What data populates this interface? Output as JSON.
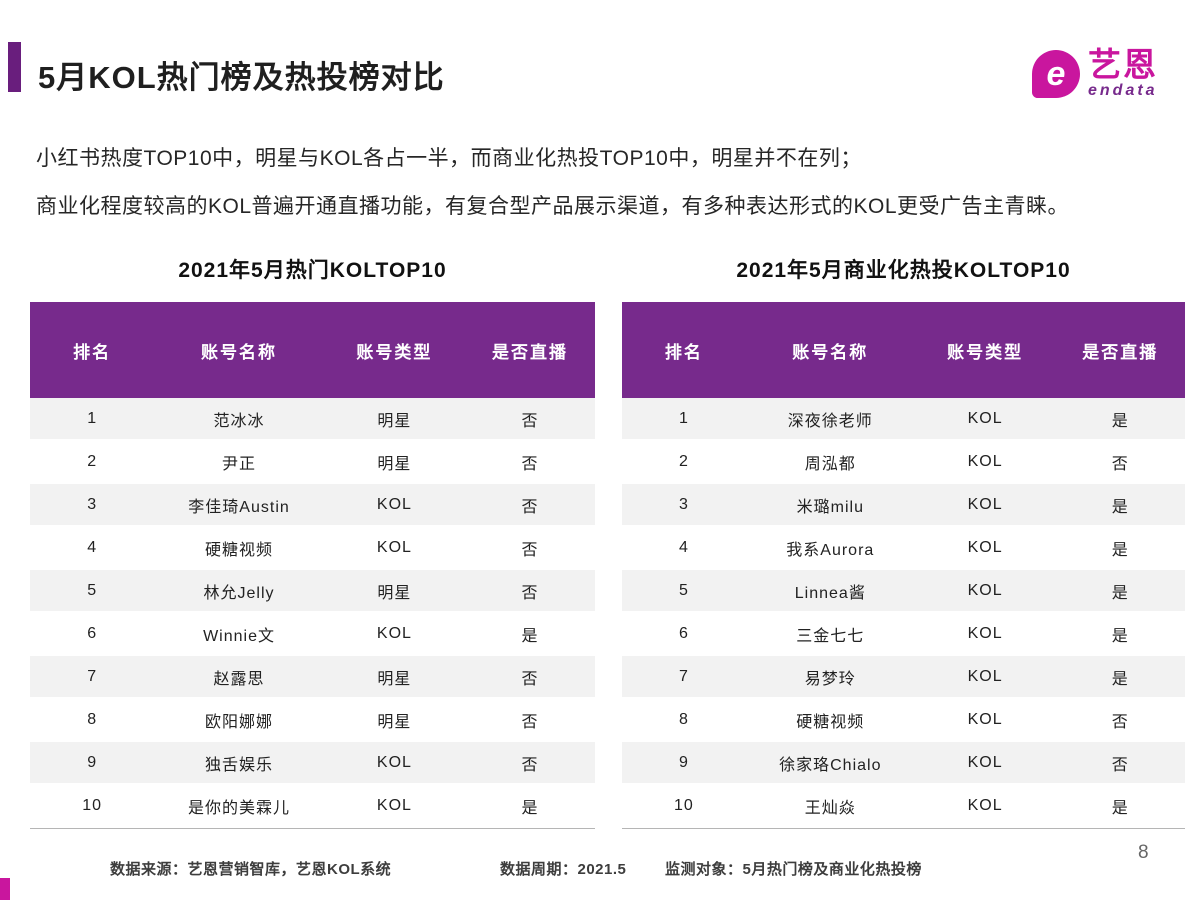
{
  "header": {
    "title": "5月KOL热门榜及热投榜对比"
  },
  "logo": {
    "glyph": "e",
    "brand": "艺恩",
    "sub": "endata"
  },
  "subtitle": {
    "line1": "小红书热度TOP10中，明星与KOL各占一半，而商业化热投TOP10中，明星并不在列；",
    "line2": "商业化程度较高的KOL普遍开通直播功能，有复合型产品展示渠道，有多种表达形式的KOL更受广告主青睐。"
  },
  "tables": [
    {
      "title": "2021年5月热门KOLTOP10",
      "headers": [
        "排名",
        "账号名称",
        "账号类型",
        "是否直播"
      ],
      "rows": [
        {
          "rank": "1",
          "name": "范冰冰",
          "type": "明星",
          "live": "否"
        },
        {
          "rank": "2",
          "name": "尹正",
          "type": "明星",
          "live": "否"
        },
        {
          "rank": "3",
          "name": "李佳琦Austin",
          "type": "KOL",
          "live": "否"
        },
        {
          "rank": "4",
          "name": "硬糖视频",
          "type": "KOL",
          "live": "否"
        },
        {
          "rank": "5",
          "name": "林允Jelly",
          "type": "明星",
          "live": "否"
        },
        {
          "rank": "6",
          "name": "Winnie文",
          "type": "KOL",
          "live": "是"
        },
        {
          "rank": "7",
          "name": "赵露思",
          "type": "明星",
          "live": "否"
        },
        {
          "rank": "8",
          "name": "欧阳娜娜",
          "type": "明星",
          "live": "否"
        },
        {
          "rank": "9",
          "name": "独舌娱乐",
          "type": "KOL",
          "live": "否"
        },
        {
          "rank": "10",
          "name": "是你的美霖儿",
          "type": "KOL",
          "live": "是"
        }
      ]
    },
    {
      "title": "2021年5月商业化热投KOLTOP10",
      "headers": [
        "排名",
        "账号名称",
        "账号类型",
        "是否直播"
      ],
      "rows": [
        {
          "rank": "1",
          "name": "深夜徐老师",
          "type": "KOL",
          "live": "是"
        },
        {
          "rank": "2",
          "name": "周泓都",
          "type": "KOL",
          "live": "否"
        },
        {
          "rank": "3",
          "name": "米璐milu",
          "type": "KOL",
          "live": "是"
        },
        {
          "rank": "4",
          "name": "我系Aurora",
          "type": "KOL",
          "live": "是"
        },
        {
          "rank": "5",
          "name": "Linnea酱",
          "type": "KOL",
          "live": "是"
        },
        {
          "rank": "6",
          "name": "三金七七",
          "type": "KOL",
          "live": "是"
        },
        {
          "rank": "7",
          "name": "易梦玲",
          "type": "KOL",
          "live": "是"
        },
        {
          "rank": "8",
          "name": "硬糖视频",
          "type": "KOL",
          "live": "否"
        },
        {
          "rank": "9",
          "name": "徐家珞Chialo",
          "type": "KOL",
          "live": "否"
        },
        {
          "rank": "10",
          "name": "王灿焱",
          "type": "KOL",
          "live": "是"
        }
      ]
    }
  ],
  "footer": {
    "source": "数据来源：艺恩营销智库，艺恩KOL系统",
    "period": "数据周期：2021.5",
    "scope": "监测对象：5月热门榜及商业化热投榜"
  },
  "page_number": "8",
  "colors": {
    "header_purple": "#772a8c",
    "accent_purple": "#691e7d",
    "brand_magenta": "#c9169e",
    "row_gray": "#f2f2f2"
  }
}
